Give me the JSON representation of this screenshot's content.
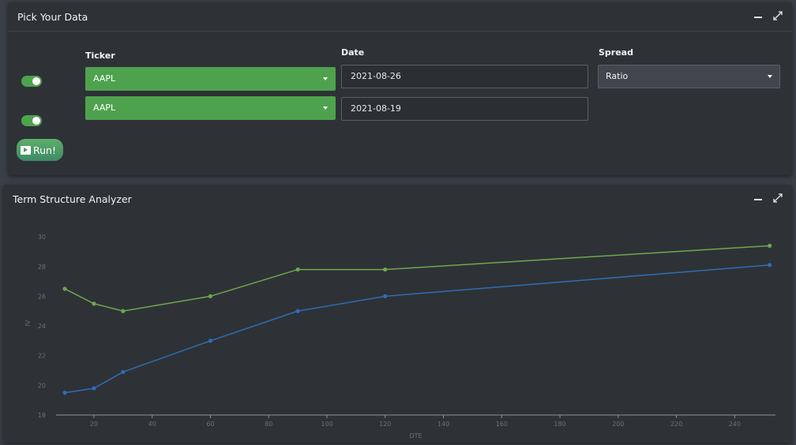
{
  "pick": {
    "title": "Pick Your Data",
    "labels": {
      "ticker": "Ticker",
      "date": "Date",
      "spread": "Spread"
    },
    "rows": [
      {
        "enabled": true,
        "ticker": "AAPL",
        "date": "2021-08-26"
      },
      {
        "enabled": true,
        "ticker": "AAPL",
        "date": "2021-08-19"
      }
    ],
    "spread_value": "Ratio",
    "run_label": "Run!",
    "run_icon": "play-square-icon"
  },
  "term": {
    "title": "Term Structure Analyzer"
  },
  "colors": {
    "accent_green": "#4ea24d",
    "series_green": "#6ea84c",
    "series_blue": "#2f6db3"
  },
  "chart_data": {
    "type": "line",
    "xlabel": "DTE",
    "ylabel": "IV",
    "xlim": [
      7,
      254
    ],
    "ylim": [
      18,
      30.7
    ],
    "xticks": [
      20,
      40,
      60,
      80,
      100,
      120,
      140,
      160,
      180,
      200,
      220,
      240
    ],
    "yticks": [
      18,
      20,
      22,
      24,
      26,
      28,
      30
    ],
    "grid": false,
    "series": [
      {
        "color": "#6ea84c",
        "x": [
          10,
          20,
          30,
          60,
          90,
          120,
          252
        ],
        "y": [
          26.5,
          25.5,
          25.0,
          26.0,
          27.8,
          27.8,
          29.4
        ]
      },
      {
        "color": "#2f6db3",
        "x": [
          10,
          20,
          30,
          60,
          90,
          120,
          252
        ],
        "y": [
          19.5,
          19.8,
          20.9,
          23.0,
          25.0,
          26.0,
          28.1
        ]
      }
    ]
  }
}
